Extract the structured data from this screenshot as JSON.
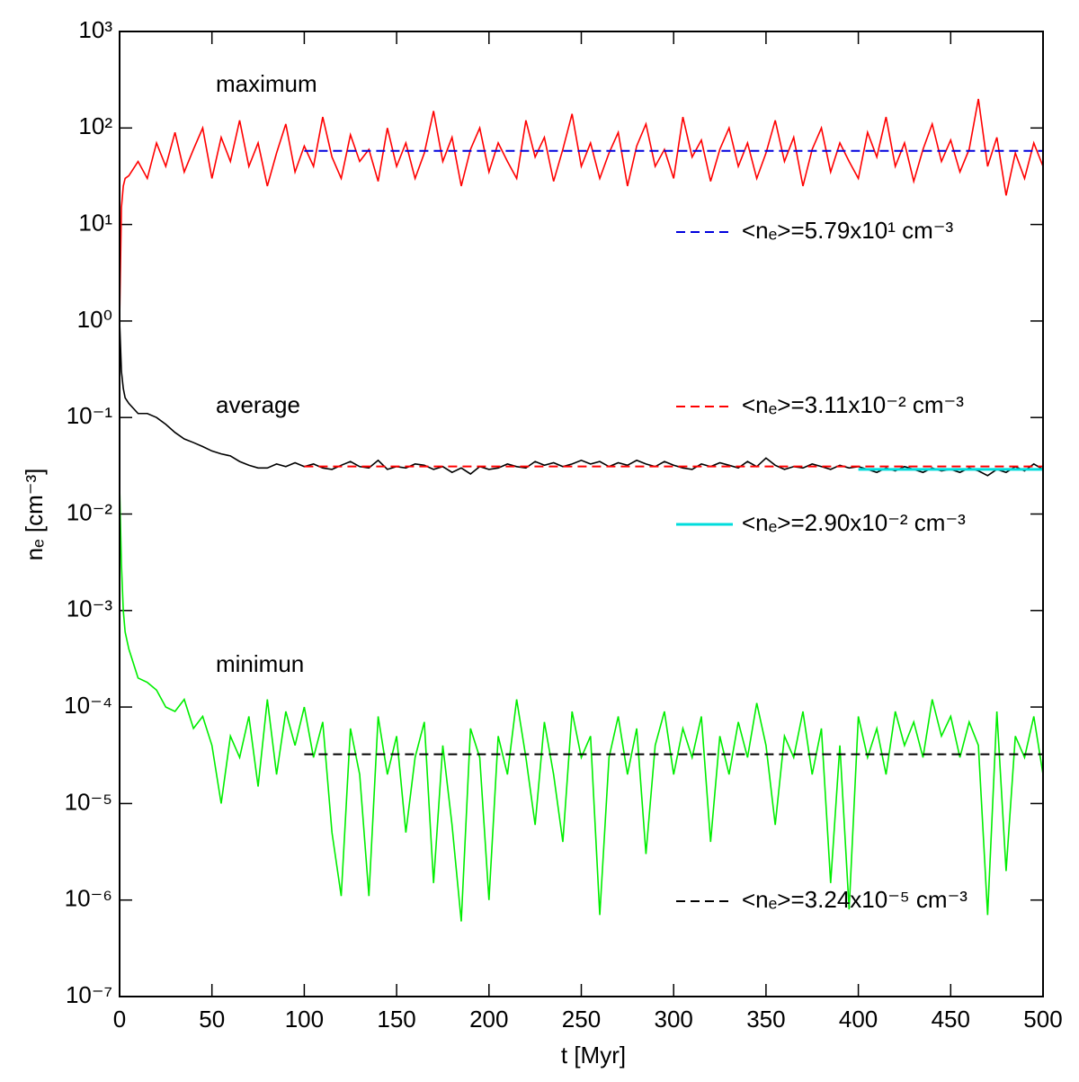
{
  "chart_data": {
    "type": "line",
    "xlabel": "t [Myr]",
    "ylabel": "nₑ [cm⁻³]",
    "annotations": [
      "maximum",
      "average",
      "minimun"
    ],
    "xlim": [
      0,
      500
    ],
    "xticks": [
      0,
      50,
      100,
      150,
      200,
      250,
      300,
      350,
      400,
      450,
      500
    ],
    "ylim": [
      1e-07,
      1000
    ],
    "yscale": "log",
    "yticks": [
      {
        "value": 1e-07,
        "label": "10⁻⁷"
      },
      {
        "value": 1e-06,
        "label": "10⁻⁶"
      },
      {
        "value": 1e-05,
        "label": "10⁻⁵"
      },
      {
        "value": 0.0001,
        "label": "10⁻⁴"
      },
      {
        "value": 0.001,
        "label": "10⁻³"
      },
      {
        "value": 0.01,
        "label": "10⁻²"
      },
      {
        "value": 0.1,
        "label": "10⁻¹"
      },
      {
        "value": 1,
        "label": "10⁰"
      },
      {
        "value": 10,
        "label": "10¹"
      },
      {
        "value": 100,
        "label": "10²"
      },
      {
        "value": 1000,
        "label": "10³"
      }
    ],
    "x": [
      0,
      1,
      2,
      3,
      5,
      10,
      15,
      20,
      25,
      30,
      35,
      40,
      45,
      50,
      55,
      60,
      65,
      70,
      75,
      80,
      85,
      90,
      95,
      100,
      105,
      110,
      115,
      120,
      125,
      130,
      135,
      140,
      145,
      150,
      155,
      160,
      165,
      170,
      175,
      180,
      185,
      190,
      195,
      200,
      205,
      210,
      215,
      220,
      225,
      230,
      235,
      240,
      245,
      250,
      255,
      260,
      265,
      270,
      275,
      280,
      285,
      290,
      295,
      300,
      305,
      310,
      315,
      320,
      325,
      330,
      335,
      340,
      345,
      350,
      355,
      360,
      365,
      370,
      375,
      380,
      385,
      390,
      395,
      400,
      405,
      410,
      415,
      420,
      425,
      430,
      435,
      440,
      445,
      450,
      455,
      460,
      465,
      470,
      475,
      480,
      485,
      490,
      495,
      500
    ],
    "series": [
      {
        "color": "#ff0000",
        "values": [
          1,
          15,
          25,
          30,
          32,
          45,
          30,
          70,
          40,
          90,
          35,
          60,
          100,
          30,
          80,
          45,
          120,
          40,
          70,
          25,
          55,
          110,
          35,
          65,
          40,
          130,
          50,
          30,
          85,
          45,
          60,
          28,
          100,
          40,
          70,
          30,
          55,
          150,
          45,
          80,
          25,
          60,
          100,
          35,
          70,
          45,
          30,
          120,
          50,
          80,
          28,
          60,
          140,
          40,
          70,
          30,
          55,
          90,
          25,
          65,
          110,
          40,
          60,
          30,
          130,
          50,
          75,
          28,
          60,
          100,
          40,
          70,
          30,
          55,
          120,
          45,
          80,
          25,
          60,
          100,
          35,
          70,
          45,
          30,
          90,
          50,
          130,
          40,
          70,
          28,
          60,
          110,
          45,
          75,
          35,
          60,
          200,
          40,
          80,
          20,
          55,
          30,
          70,
          40
        ]
      },
      {
        "color": "#000000",
        "values": [
          1.0,
          0.3,
          0.2,
          0.16,
          0.14,
          0.11,
          0.11,
          0.1,
          0.085,
          0.07,
          0.06,
          0.055,
          0.05,
          0.045,
          0.042,
          0.04,
          0.035,
          0.032,
          0.03,
          0.03,
          0.033,
          0.031,
          0.034,
          0.031,
          0.033,
          0.03,
          0.029,
          0.032,
          0.035,
          0.031,
          0.03,
          0.036,
          0.029,
          0.031,
          0.03,
          0.033,
          0.032,
          0.029,
          0.031,
          0.027,
          0.03,
          0.026,
          0.031,
          0.029,
          0.03,
          0.033,
          0.031,
          0.03,
          0.035,
          0.032,
          0.034,
          0.031,
          0.033,
          0.036,
          0.033,
          0.035,
          0.031,
          0.034,
          0.032,
          0.036,
          0.033,
          0.031,
          0.035,
          0.032,
          0.03,
          0.029,
          0.033,
          0.031,
          0.034,
          0.032,
          0.03,
          0.035,
          0.031,
          0.038,
          0.032,
          0.029,
          0.031,
          0.03,
          0.033,
          0.031,
          0.029,
          0.032,
          0.03,
          0.031,
          0.029,
          0.027,
          0.03,
          0.028,
          0.031,
          0.029,
          0.027,
          0.03,
          0.028,
          0.029,
          0.027,
          0.03,
          0.028,
          0.025,
          0.029,
          0.027,
          0.031,
          0.028,
          0.033,
          0.029
        ]
      },
      {
        "color": "#00ee00",
        "values": [
          0.02,
          0.003,
          0.001,
          0.0006,
          0.0004,
          0.0002,
          0.00018,
          0.00015,
          0.0001,
          9e-05,
          0.00012,
          6e-05,
          8e-05,
          4e-05,
          1e-05,
          5e-05,
          3e-05,
          8e-05,
          1.5e-05,
          0.00012,
          2e-05,
          9e-05,
          4e-05,
          0.0001,
          3e-05,
          7e-05,
          5e-06,
          1.1e-06,
          6e-05,
          2e-05,
          1.1e-06,
          8e-05,
          2e-05,
          5e-05,
          5e-06,
          3e-05,
          7e-05,
          1.5e-06,
          4e-05,
          6e-06,
          6e-07,
          6e-05,
          3e-05,
          1e-06,
          5e-05,
          2e-05,
          0.00012,
          3e-05,
          6e-06,
          7e-05,
          2e-05,
          4e-06,
          9e-05,
          3e-05,
          5e-05,
          7e-07,
          3e-05,
          8e-05,
          2e-05,
          6e-05,
          3e-06,
          4e-05,
          9e-05,
          2e-05,
          6e-05,
          3e-05,
          8e-05,
          4e-06,
          5e-05,
          2e-05,
          7e-05,
          3e-05,
          0.00011,
          4e-05,
          6e-06,
          5e-05,
          3e-05,
          9e-05,
          2e-05,
          6e-05,
          1.5e-06,
          4e-05,
          8e-07,
          8e-05,
          3e-05,
          6e-05,
          2e-05,
          9e-05,
          4e-05,
          7e-05,
          3e-05,
          0.00012,
          5e-05,
          8e-05,
          3e-05,
          7e-05,
          4e-05,
          7e-07,
          9e-05,
          2e-06,
          5e-05,
          3e-05,
          8e-05,
          2e-05
        ]
      },
      {
        "name": "<nₑ>=5.79x10¹ cm⁻³",
        "color": "#0000dd",
        "dashed": true,
        "x": [
          100,
          500
        ],
        "values": [
          57.9,
          57.9
        ]
      },
      {
        "name": "<nₑ>=3.11x10⁻² cm⁻³",
        "color": "#ff0000",
        "dashed": true,
        "x": [
          100,
          500
        ],
        "values": [
          0.0311,
          0.0311
        ]
      },
      {
        "name": "<nₑ>=2.90x10⁻² cm⁻³",
        "color": "#00dddd",
        "dashed": false,
        "x": [
          400,
          500
        ],
        "values": [
          0.029,
          0.029
        ]
      },
      {
        "name": "<nₑ>=3.24x10⁻⁵ cm⁻³",
        "color": "#000000",
        "dashed": true,
        "x": [
          100,
          500
        ],
        "values": [
          3.24e-05,
          3.24e-05
        ]
      }
    ]
  }
}
